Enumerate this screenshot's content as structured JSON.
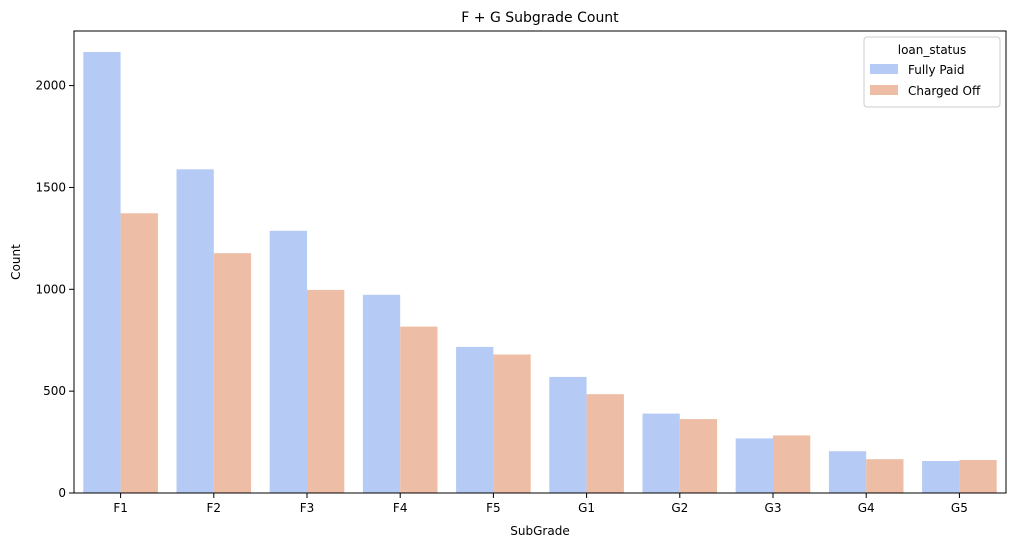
{
  "chart_data": {
    "type": "bar",
    "title": "F + G Subgrade Count",
    "xlabel": "SubGrade",
    "ylabel": "Count",
    "categories": [
      "F1",
      "F2",
      "F3",
      "F4",
      "F5",
      "G1",
      "G2",
      "G3",
      "G4",
      "G5"
    ],
    "series": [
      {
        "name": "Fully Paid",
        "color": "#b5cbf5",
        "values": [
          2165,
          1589,
          1287,
          973,
          717,
          570,
          390,
          268,
          205,
          157
        ]
      },
      {
        "name": "Charged Off",
        "color": "#edbda6",
        "values": [
          1373,
          1177,
          997,
          817,
          680,
          485,
          363,
          283,
          166,
          162
        ]
      }
    ],
    "ylim": [
      0,
      2268
    ],
    "yticks": [
      0,
      500,
      1000,
      1500,
      2000
    ],
    "legend": {
      "title": "loan_status",
      "placement": "top-right"
    },
    "grid": false
  }
}
